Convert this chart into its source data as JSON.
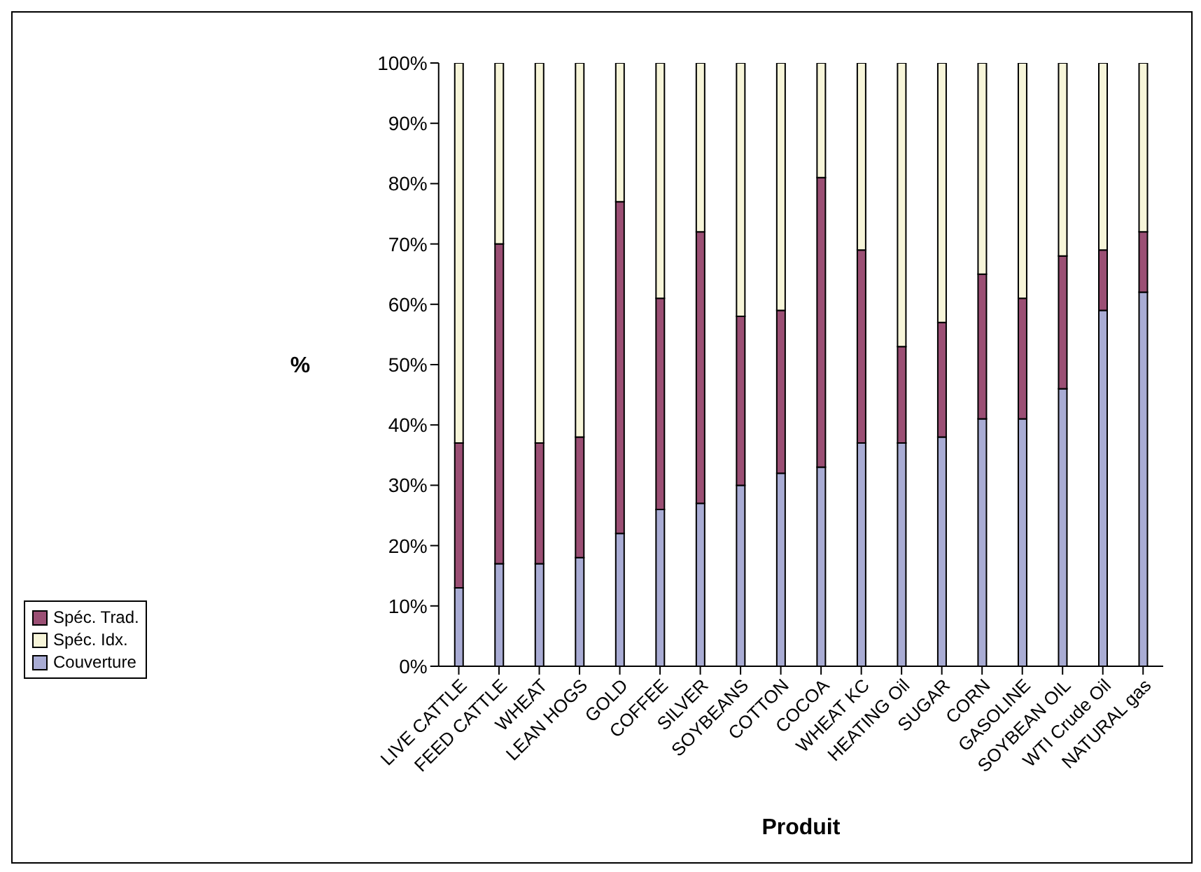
{
  "chart_data": {
    "type": "bar",
    "stacked": true,
    "xlabel": "Produit",
    "ylabel": "%",
    "legend": "left",
    "grid": false,
    "categories": [
      "LIVE CATTLE",
      "FEED CATTLE",
      "WHEAT",
      "LEAN HOGS",
      "GOLD",
      "COFFEE",
      "SILVER",
      "SOYBEANS",
      "COTTON",
      "COCOA",
      "WHEAT KC",
      "HEATING Oil",
      "SUGAR",
      "CORN",
      "GASOLINE",
      "SOYBEAN OIL",
      "WTI Crude Oil",
      "NATURAL gas"
    ],
    "ylim": [
      0,
      100
    ],
    "yticks": [
      {
        "value": 0,
        "label": "0%"
      },
      {
        "value": 10,
        "label": "10%"
      },
      {
        "value": 20,
        "label": "20%"
      },
      {
        "value": 30,
        "label": "30%"
      },
      {
        "value": 40,
        "label": "40%"
      },
      {
        "value": 50,
        "label": "50%"
      },
      {
        "value": 60,
        "label": "60%"
      },
      {
        "value": 70,
        "label": "70%"
      },
      {
        "value": 80,
        "label": "80%"
      },
      {
        "value": 90,
        "label": "90%"
      },
      {
        "value": 100,
        "label": "100%"
      }
    ],
    "series": [
      {
        "name": "Couverture",
        "color": "#a9acd4",
        "values": [
          13,
          17,
          17,
          18,
          22,
          26,
          27,
          30,
          32,
          33,
          37,
          37,
          38,
          41,
          41,
          46,
          59,
          62
        ]
      },
      {
        "name": "Spéc. Trad.",
        "color": "#9b4f74",
        "values": [
          24,
          53,
          20,
          20,
          55,
          35,
          45,
          28,
          27,
          48,
          32,
          16,
          19,
          24,
          20,
          22,
          10,
          10
        ]
      },
      {
        "name": "Spéc. Idx.",
        "color": "#f7f5d9",
        "values": [
          63,
          30,
          63,
          62,
          23,
          39,
          28,
          42,
          41,
          19,
          31,
          47,
          43,
          35,
          39,
          32,
          31,
          28
        ]
      }
    ]
  }
}
